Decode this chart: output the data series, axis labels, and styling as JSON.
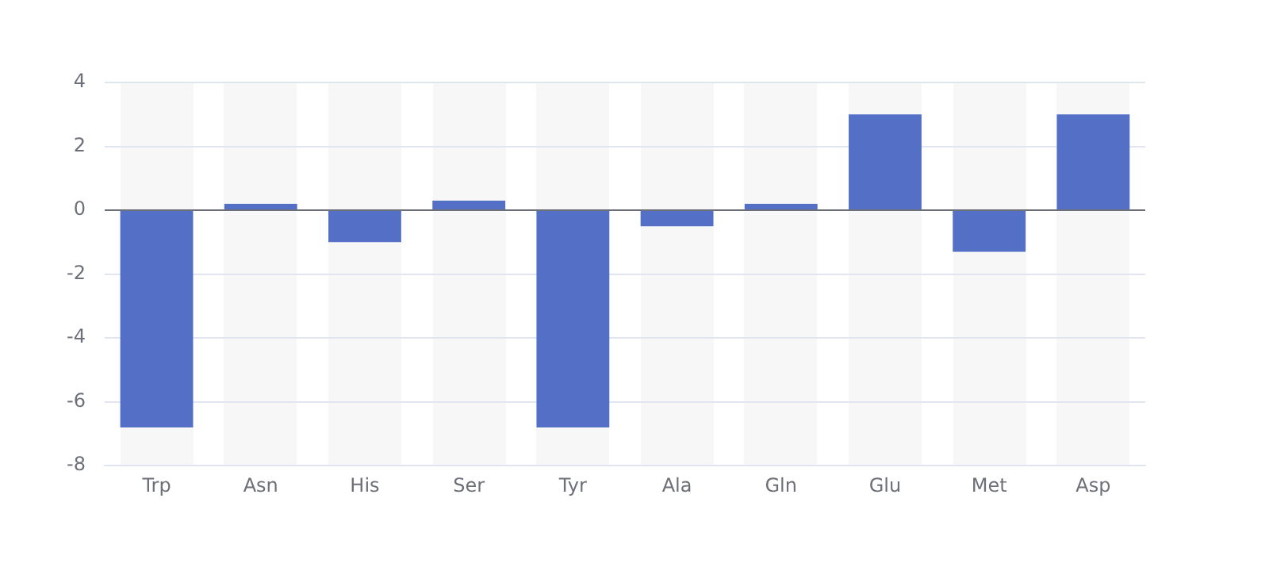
{
  "chart_data": {
    "type": "bar",
    "categories": [
      "Trp",
      "Asn",
      "His",
      "Ser",
      "Tyr",
      "Ala",
      "Gln",
      "Glu",
      "Met",
      "Asp"
    ],
    "values": [
      -6.8,
      0.2,
      -1,
      0.3,
      -6.8,
      -0.5,
      0.2,
      3,
      -1.3,
      3
    ],
    "color": "#5470c6",
    "ylim": [
      -8,
      4
    ],
    "yticks": [
      -8,
      -6,
      -4,
      -2,
      0,
      2,
      4
    ],
    "grid": "y"
  }
}
